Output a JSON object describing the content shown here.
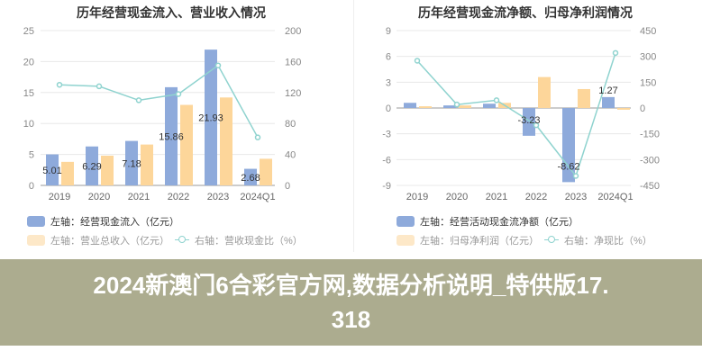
{
  "banner": {
    "line1": "2024新澳门6合彩官方网,数据分析说明_特供版17.",
    "line2": "318"
  },
  "colors": {
    "bar_primary": "#8eaadb",
    "bar_secondary": "#fdd69a",
    "line": "#8fd3cf",
    "grid": "#e8e8e8"
  },
  "chart_data": [
    {
      "type": "bar",
      "title": "历年经营现金流入、营业收入情况",
      "categories": [
        "2019",
        "2020",
        "2021",
        "2022",
        "2023",
        "2024Q1"
      ],
      "left_axis": {
        "range": [
          0,
          25
        ],
        "ticks": [
          "0",
          "5",
          "10",
          "15",
          "20",
          "25"
        ]
      },
      "right_axis": {
        "range": [
          0,
          200
        ],
        "ticks": [
          "0",
          "40",
          "80",
          "120",
          "160",
          "200"
        ]
      },
      "grid": true,
      "legend_placement": "bottom",
      "series": [
        {
          "name": "左轴：经营现金流入（亿元）",
          "axis": "left",
          "type": "bar",
          "values": [
            5.01,
            6.29,
            7.18,
            15.86,
            21.93,
            2.68
          ],
          "labels": [
            "5.01",
            "6.29",
            "7.18",
            "15.86",
            "21.93",
            "2.68"
          ]
        },
        {
          "name": "左轴：营业总收入（亿元）",
          "axis": "left",
          "type": "bar",
          "values": [
            3.8,
            4.8,
            6.6,
            13.0,
            14.2,
            4.3
          ]
        },
        {
          "name": "右轴：营收现金比（%）",
          "axis": "right",
          "type": "line",
          "values": [
            130,
            128,
            110,
            118,
            155,
            62
          ]
        }
      ]
    },
    {
      "type": "bar",
      "title": "历年经营现金流净额、归母净利润情况",
      "categories": [
        "2019",
        "2020",
        "2021",
        "2022",
        "2023",
        "2024Q1"
      ],
      "left_axis": {
        "range": [
          -9,
          9
        ],
        "ticks": [
          "-9",
          "-6",
          "-3",
          "0",
          "3",
          "6",
          "9"
        ]
      },
      "right_axis": {
        "range": [
          -450,
          450
        ],
        "ticks": [
          "-450",
          "-300",
          "-150",
          "0",
          "150",
          "300",
          "450"
        ]
      },
      "grid": true,
      "legend_placement": "bottom",
      "series": [
        {
          "name": "左轴：经营活动现金流净额（亿元）",
          "axis": "left",
          "type": "bar",
          "values": [
            0.6,
            0.3,
            0.5,
            -3.23,
            -8.62,
            1.27
          ],
          "labels": [
            "",
            "",
            "",
            "-3.23",
            "-8.62",
            "1.27"
          ]
        },
        {
          "name": "左轴：归母净利润（亿元）",
          "axis": "left",
          "type": "bar",
          "values": [
            0.2,
            0.3,
            0.6,
            3.6,
            2.2,
            -0.2
          ]
        },
        {
          "name": "右轴：净现比（%）",
          "axis": "right",
          "type": "line",
          "values": [
            275,
            20,
            45,
            -100,
            -395,
            320
          ]
        }
      ]
    }
  ]
}
